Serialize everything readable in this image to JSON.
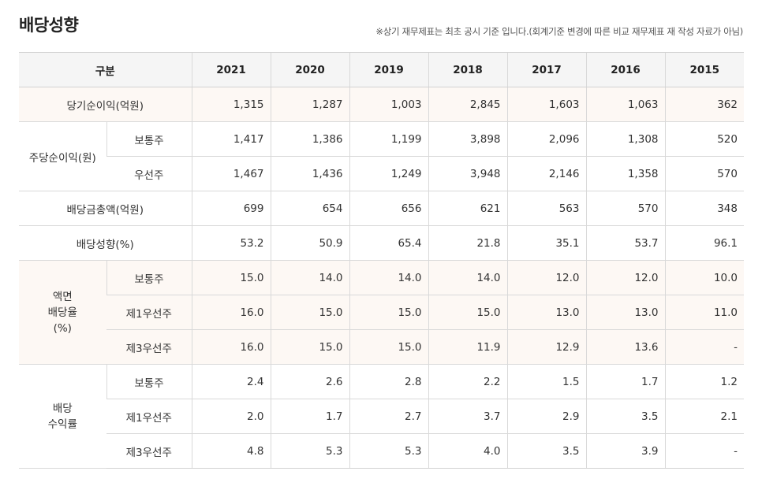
{
  "title": "배당성향",
  "note": "※상기 재무제표는 최초 공시 기준 입니다.(회계기준 변경에 따른 비교 재무제표 재 작성 자료가 아님)",
  "header": {
    "category": "구분",
    "years": [
      "2021",
      "2020",
      "2019",
      "2018",
      "2017",
      "2016",
      "2015"
    ]
  },
  "rows": {
    "net_income": {
      "label": "당기순이익(억원)",
      "values": [
        "1,315",
        "1,287",
        "1,003",
        "2,845",
        "1,603",
        "1,063",
        "362"
      ]
    },
    "eps": {
      "label": "주당순이익(원)",
      "common": {
        "label": "보통주",
        "values": [
          "1,417",
          "1,386",
          "1,199",
          "3,898",
          "2,096",
          "1,308",
          "520"
        ]
      },
      "preferred": {
        "label": "우선주",
        "values": [
          "1,467",
          "1,436",
          "1,249",
          "3,948",
          "2,146",
          "1,358",
          "570"
        ]
      }
    },
    "dividend_total": {
      "label": "배당금총액(억원)",
      "values": [
        "699",
        "654",
        "656",
        "621",
        "563",
        "570",
        "348"
      ]
    },
    "payout_ratio": {
      "label": "배당성향(%)",
      "values": [
        "53.2",
        "50.9",
        "65.4",
        "21.8",
        "35.1",
        "53.7",
        "96.1"
      ]
    },
    "face_dividend": {
      "label_lines": [
        "액면",
        "배당율",
        "(%)"
      ],
      "common": {
        "label": "보통주",
        "values": [
          "15.0",
          "14.0",
          "14.0",
          "14.0",
          "12.0",
          "12.0",
          "10.0"
        ]
      },
      "pref1": {
        "label": "제1우선주",
        "values": [
          "16.0",
          "15.0",
          "15.0",
          "15.0",
          "13.0",
          "13.0",
          "11.0"
        ]
      },
      "pref3": {
        "label": "제3우선주",
        "values": [
          "16.0",
          "15.0",
          "15.0",
          "11.9",
          "12.9",
          "13.6",
          "-"
        ]
      }
    },
    "dividend_yield": {
      "label_lines": [
        "배당",
        "수익률"
      ],
      "common": {
        "label": "보통주",
        "values": [
          "2.4",
          "2.6",
          "2.8",
          "2.2",
          "1.5",
          "1.7",
          "1.2"
        ]
      },
      "pref1": {
        "label": "제1우선주",
        "values": [
          "2.0",
          "1.7",
          "2.7",
          "3.7",
          "2.9",
          "3.5",
          "2.1"
        ]
      },
      "pref3": {
        "label": "제3우선주",
        "values": [
          "4.8",
          "5.3",
          "5.3",
          "4.0",
          "3.5",
          "3.9",
          "-"
        ]
      }
    }
  }
}
